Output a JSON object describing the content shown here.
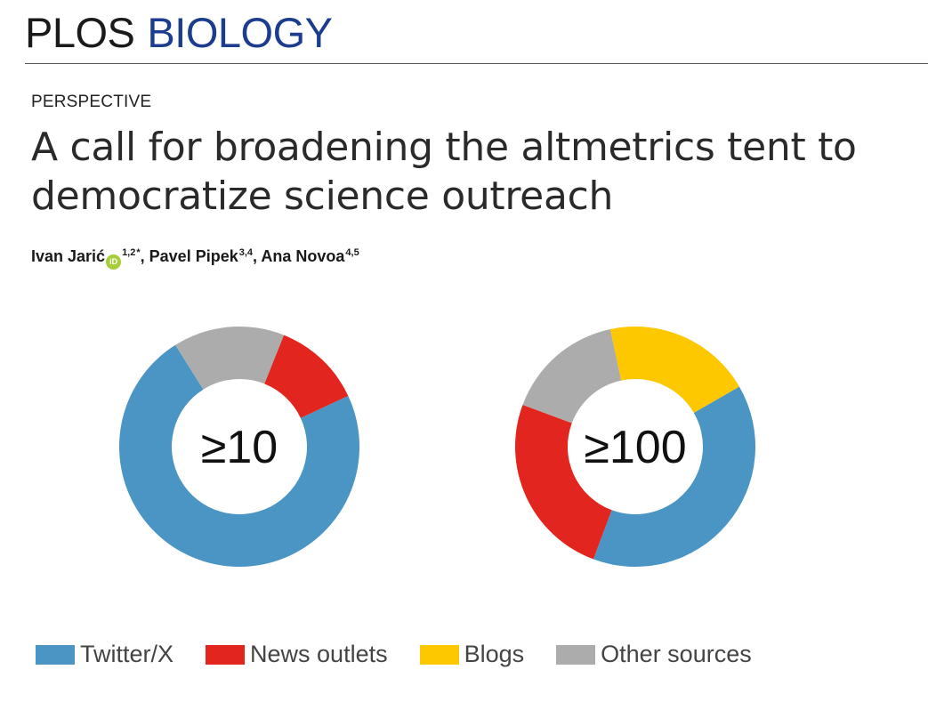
{
  "journal": {
    "name_part1": "PLOS",
    "name_part2": "BIOLOGY"
  },
  "article": {
    "type": "PERSPECTIVE",
    "title_line1": "A call for broadening the altmetrics tent to",
    "title_line2": "democratize science outreach"
  },
  "authors": [
    {
      "name": "Ivan Jarić",
      "orcid": true,
      "affiliations": "1,2",
      "corresponding": "*"
    },
    {
      "name": "Pavel Pipek",
      "orcid": false,
      "affiliations": "3,4",
      "corresponding": ""
    },
    {
      "name": "Ana Novoa",
      "orcid": false,
      "affiliations": "4,5",
      "corresponding": ""
    }
  ],
  "orcid_icon": {
    "icon": "orcid-icon",
    "label": "iD",
    "color": "#a6ce39"
  },
  "chart_data": [
    {
      "type": "pie",
      "center_label": "≥10",
      "slices": [
        {
          "name": "Twitter/X",
          "value": 73
        },
        {
          "name": "Other sources",
          "value": 15
        },
        {
          "name": "News outlets",
          "value": 12
        }
      ]
    },
    {
      "type": "pie",
      "center_label": "≥100",
      "slices": [
        {
          "name": "Twitter/X",
          "value": 39
        },
        {
          "name": "News outlets",
          "value": 25
        },
        {
          "name": "Other sources",
          "value": 16
        },
        {
          "name": "Blogs",
          "value": 20
        }
      ]
    }
  ],
  "legend": [
    {
      "label": "Twitter/X",
      "color": "#4a95c4"
    },
    {
      "label": "News outlets",
      "color": "#e2261f"
    },
    {
      "label": "Blogs",
      "color": "#fdc800"
    },
    {
      "label": "Other sources",
      "color": "#acacac"
    }
  ],
  "colors": {
    "Twitter/X": "#4a95c4",
    "News outlets": "#e2261f",
    "Blogs": "#fdc800",
    "Other sources": "#acacac",
    "journal_blue": "#1c3c8e"
  }
}
